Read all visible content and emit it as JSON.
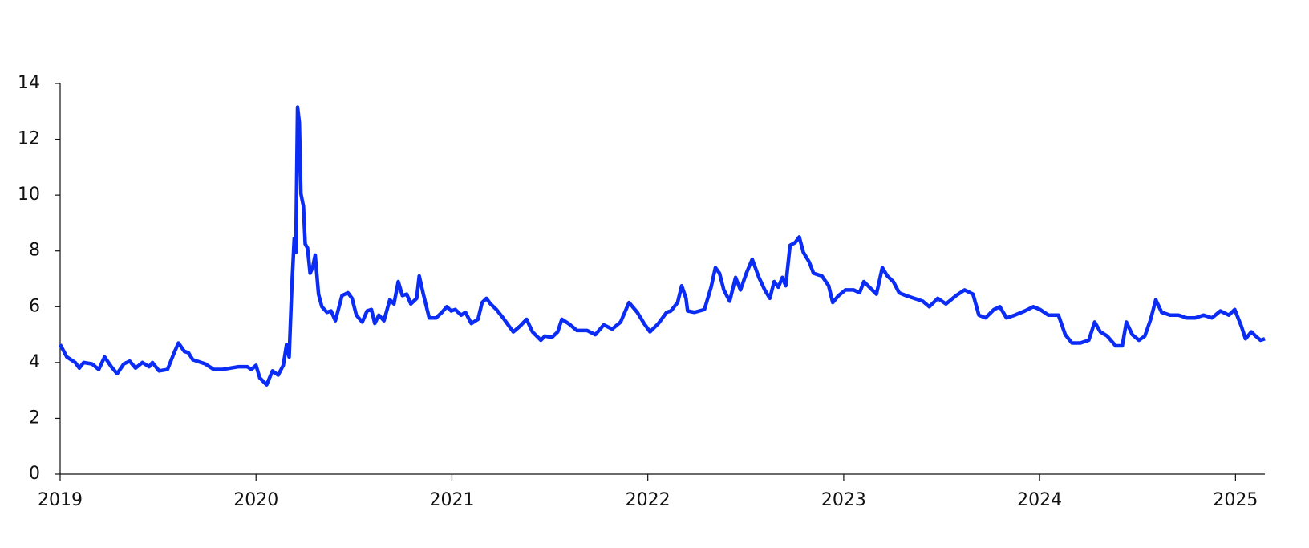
{
  "chart_data": {
    "type": "line",
    "color": "#0a2cf5",
    "xlim": [
      2019,
      2025.15
    ],
    "xticks": [
      2019,
      2020,
      2021,
      2022,
      2023,
      2024,
      2025
    ],
    "ylim": [
      0,
      14
    ],
    "yticks": [
      0,
      2,
      4,
      6,
      8,
      10,
      12,
      14
    ],
    "x": [
      2019.0,
      2019.034,
      2019.077,
      2019.098,
      2019.12,
      2019.163,
      2019.197,
      2019.227,
      2019.261,
      2019.291,
      2019.325,
      2019.355,
      2019.385,
      2019.42,
      2019.454,
      2019.471,
      2019.505,
      2019.548,
      2019.582,
      2019.604,
      2019.634,
      2019.655,
      2019.677,
      2019.741,
      2019.784,
      2019.827,
      2019.869,
      2019.912,
      2019.955,
      2019.976,
      2020.0,
      2020.019,
      2020.054,
      2020.084,
      2020.113,
      2020.139,
      2020.156,
      2020.169,
      2020.182,
      2020.195,
      2020.203,
      2020.212,
      2020.221,
      2020.229,
      2020.242,
      2020.251,
      2020.263,
      2020.276,
      2020.289,
      2020.302,
      2020.319,
      2020.336,
      2020.362,
      2020.383,
      2020.405,
      2020.439,
      2020.469,
      2020.49,
      2020.512,
      2020.542,
      2020.567,
      2020.589,
      2020.606,
      2020.627,
      2020.653,
      2020.683,
      2020.704,
      2020.726,
      2020.747,
      2020.769,
      2020.79,
      2020.82,
      2020.833,
      2020.854,
      2020.884,
      2020.919,
      2020.949,
      2020.974,
      2020.996,
      2021.017,
      2021.047,
      2021.069,
      2021.099,
      2021.133,
      2021.154,
      2021.176,
      2021.197,
      2021.227,
      2021.261,
      2021.313,
      2021.347,
      2021.381,
      2021.411,
      2021.454,
      2021.475,
      2021.51,
      2021.54,
      2021.561,
      2021.595,
      2021.638,
      2021.69,
      2021.732,
      2021.775,
      2021.818,
      2021.861,
      2021.904,
      2021.946,
      2021.981,
      2022.011,
      2022.054,
      2022.096,
      2022.118,
      2022.152,
      2022.173,
      2022.195,
      2022.203,
      2022.238,
      2022.289,
      2022.323,
      2022.345,
      2022.366,
      2022.388,
      2022.418,
      2022.448,
      2022.473,
      2022.503,
      2022.533,
      2022.567,
      2022.597,
      2022.623,
      2022.645,
      2022.666,
      2022.687,
      2022.704,
      2022.726,
      2022.752,
      2022.773,
      2022.794,
      2022.824,
      2022.846,
      2022.889,
      2022.923,
      2022.944,
      2022.974,
      2023.009,
      2023.051,
      2023.081,
      2023.103,
      2023.124,
      2023.167,
      2023.197,
      2023.223,
      2023.253,
      2023.283,
      2023.317,
      2023.36,
      2023.403,
      2023.437,
      2023.48,
      2023.522,
      2023.574,
      2023.617,
      2023.66,
      2023.69,
      2023.724,
      2023.767,
      2023.797,
      2023.831,
      2023.874,
      2023.925,
      2023.968,
      2024.002,
      2024.045,
      2024.096,
      2024.131,
      2024.165,
      2024.208,
      2024.251,
      2024.281,
      2024.31,
      2024.345,
      2024.388,
      2024.422,
      2024.443,
      2024.473,
      2024.507,
      2024.537,
      2024.567,
      2024.593,
      2024.623,
      2024.666,
      2024.709,
      2024.752,
      2024.794,
      2024.837,
      2024.88,
      2024.923,
      2024.966,
      2024.996,
      2025.03,
      2025.051,
      2025.081,
      2025.103,
      2025.128,
      2025.15
    ],
    "values": [
      4.65,
      4.2,
      4.0,
      3.8,
      4.0,
      3.95,
      3.75,
      4.2,
      3.85,
      3.6,
      3.95,
      4.05,
      3.8,
      4.0,
      3.85,
      4.0,
      3.7,
      3.75,
      4.35,
      4.7,
      4.4,
      4.35,
      4.1,
      3.95,
      3.75,
      3.75,
      3.8,
      3.85,
      3.85,
      3.75,
      3.9,
      3.45,
      3.2,
      3.7,
      3.55,
      3.9,
      4.65,
      4.2,
      6.6,
      8.45,
      7.95,
      13.15,
      12.6,
      10.05,
      9.6,
      8.25,
      8.1,
      7.2,
      7.4,
      7.85,
      6.45,
      6.0,
      5.8,
      5.85,
      5.5,
      6.4,
      6.5,
      6.3,
      5.7,
      5.45,
      5.85,
      5.9,
      5.4,
      5.7,
      5.5,
      6.25,
      6.1,
      6.9,
      6.4,
      6.45,
      6.1,
      6.3,
      7.1,
      6.45,
      5.6,
      5.6,
      5.8,
      6.0,
      5.85,
      5.9,
      5.7,
      5.8,
      5.4,
      5.55,
      6.15,
      6.3,
      6.1,
      5.9,
      5.6,
      5.1,
      5.3,
      5.55,
      5.1,
      4.8,
      4.95,
      4.9,
      5.1,
      5.55,
      5.4,
      5.15,
      5.15,
      5.0,
      5.35,
      5.2,
      5.45,
      6.15,
      5.8,
      5.4,
      5.1,
      5.4,
      5.8,
      5.85,
      6.15,
      6.75,
      6.3,
      5.85,
      5.8,
      5.9,
      6.7,
      7.4,
      7.2,
      6.6,
      6.2,
      7.05,
      6.6,
      7.2,
      7.7,
      7.05,
      6.6,
      6.3,
      6.9,
      6.7,
      7.05,
      6.75,
      8.2,
      8.3,
      8.5,
      7.95,
      7.6,
      7.2,
      7.1,
      6.75,
      6.15,
      6.4,
      6.6,
      6.6,
      6.5,
      6.9,
      6.75,
      6.45,
      7.4,
      7.1,
      6.9,
      6.5,
      6.4,
      6.3,
      6.2,
      6.0,
      6.3,
      6.1,
      6.4,
      6.6,
      6.45,
      5.7,
      5.6,
      5.9,
      6.0,
      5.6,
      5.7,
      5.85,
      6.0,
      5.9,
      5.7,
      5.7,
      5.0,
      4.7,
      4.7,
      4.8,
      5.45,
      5.1,
      4.95,
      4.6,
      4.6,
      5.45,
      5.0,
      4.8,
      4.95,
      5.55,
      6.25,
      5.8,
      5.7,
      5.7,
      5.6,
      5.6,
      5.7,
      5.6,
      5.85,
      5.7,
      5.9,
      5.3,
      4.85,
      5.1,
      4.95,
      4.8,
      4.85
    ]
  }
}
